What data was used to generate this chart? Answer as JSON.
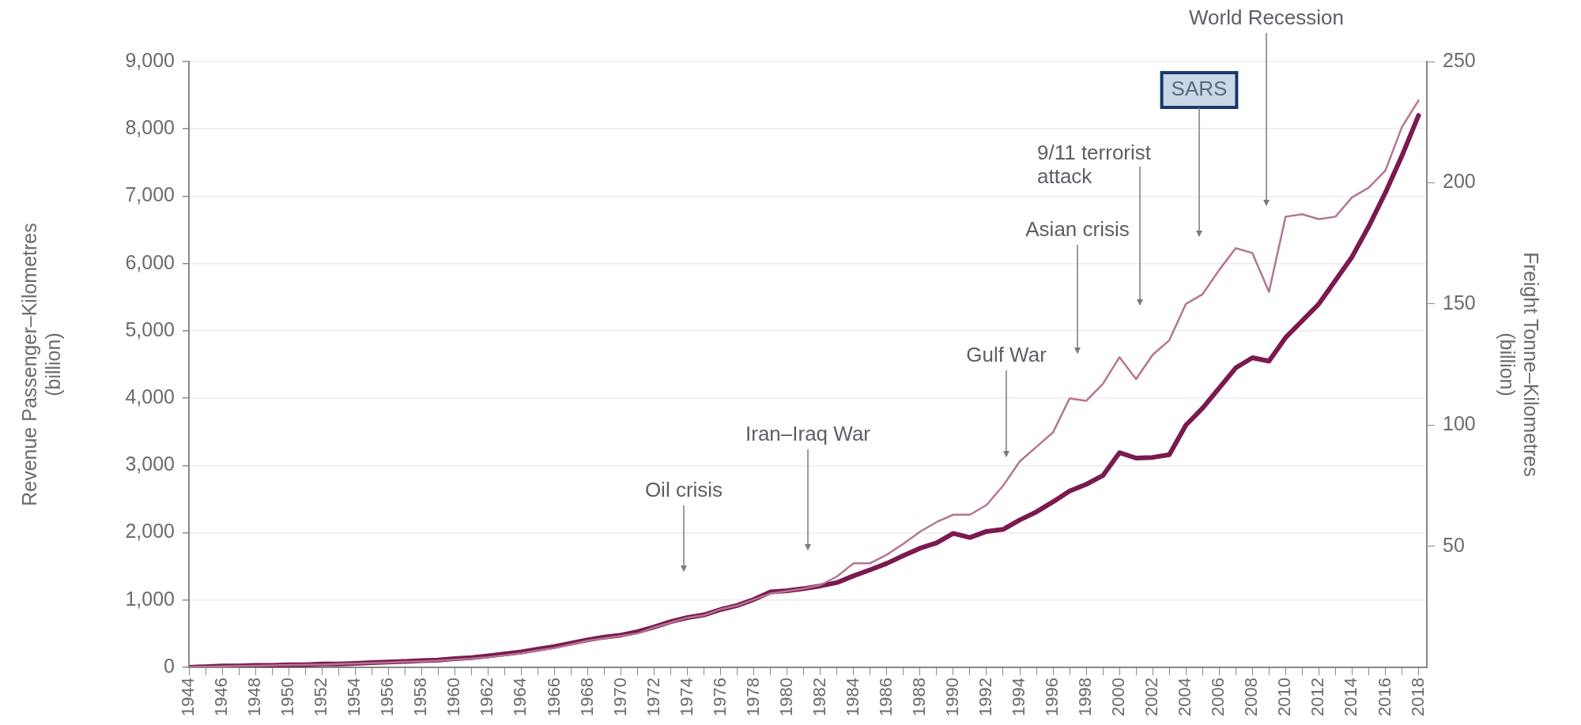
{
  "chart_data": {
    "type": "line",
    "ylabel": "Revenue Passenger–Kilometres (billion)",
    "y2label": "Freight Tonne–Kilometres (billion)",
    "x": [
      1944,
      1945,
      1946,
      1947,
      1948,
      1949,
      1950,
      1951,
      1952,
      1953,
      1954,
      1955,
      1956,
      1957,
      1958,
      1959,
      1960,
      1961,
      1962,
      1963,
      1964,
      1965,
      1966,
      1967,
      1968,
      1969,
      1970,
      1971,
      1972,
      1973,
      1974,
      1975,
      1976,
      1977,
      1978,
      1979,
      1980,
      1981,
      1982,
      1983,
      1984,
      1985,
      1986,
      1987,
      1988,
      1989,
      1990,
      1991,
      1992,
      1993,
      1994,
      1995,
      1996,
      1997,
      1998,
      1999,
      2000,
      2001,
      2002,
      2003,
      2004,
      2005,
      2006,
      2007,
      2008,
      2009,
      2010,
      2011,
      2012,
      2013,
      2014,
      2015,
      2016,
      2017,
      2018
    ],
    "series": [
      {
        "color": "#7a1a4f",
        "values": [
          0,
          10,
          20,
          20,
          30,
          30,
          40,
          40,
          50,
          50,
          60,
          70,
          80,
          90,
          100,
          110,
          130,
          145,
          170,
          200,
          230,
          270,
          310,
          360,
          410,
          450,
          480,
          530,
          600,
          680,
          740,
          780,
          860,
          920,
          1010,
          1120,
          1140,
          1170,
          1210,
          1260,
          1360,
          1450,
          1545,
          1660,
          1770,
          1850,
          1990,
          1930,
          2020,
          2050,
          2190,
          2310,
          2460,
          2620,
          2720,
          2850,
          3190,
          3110,
          3120,
          3160,
          3600,
          3850,
          4150,
          4450,
          4600,
          4550,
          4900,
          5150,
          5400,
          5750,
          6100,
          6550,
          7050,
          7600,
          8200
        ]
      },
      {
        "color": "#b57593",
        "axis": "y2",
        "values": [
          0.2,
          0.3,
          0.4,
          0.6,
          0.7,
          0.8,
          1,
          1.1,
          1.2,
          1.4,
          1.6,
          1.8,
          2,
          2.3,
          2.5,
          2.8,
          3.2,
          3.6,
          4.2,
          5,
          5.8,
          7,
          8,
          9.5,
          11,
          12,
          13,
          14,
          16.5,
          18.5,
          20.5,
          21.5,
          24,
          25.5,
          28,
          30.5,
          31.5,
          32.5,
          34,
          37.5,
          43,
          43,
          46.5,
          51,
          56,
          60,
          63,
          63,
          67,
          75,
          85,
          91,
          97,
          111,
          110,
          117,
          128,
          119,
          129,
          135,
          150,
          154,
          164,
          173,
          171,
          155,
          186,
          187,
          185,
          186,
          194,
          198,
          205,
          223,
          234
        ]
      }
    ],
    "xlim": [
      1944,
      2018.5
    ],
    "xticks": [
      1944,
      {
        "value": 1945,
        "label": null
      },
      1946,
      {
        "value": 1947,
        "label": null
      },
      1948,
      {
        "value": 1949,
        "label": null
      },
      1950,
      {
        "value": 1951,
        "label": null
      },
      1952,
      {
        "value": 1953,
        "label": null
      },
      1954,
      {
        "value": 1955,
        "label": null
      },
      1956,
      {
        "value": 1957,
        "label": null
      },
      1958,
      {
        "value": 1959,
        "label": null
      },
      1960,
      {
        "value": 1961,
        "label": null
      },
      1962,
      {
        "value": 1963,
        "label": null
      },
      1964,
      {
        "value": 1965,
        "label": null
      },
      1966,
      {
        "value": 1967,
        "label": null
      },
      1968,
      {
        "value": 1969,
        "label": null
      },
      1970,
      {
        "value": 1971,
        "label": null
      },
      1972,
      {
        "value": 1973,
        "label": null
      },
      1974,
      {
        "value": 1975,
        "label": null
      },
      1976,
      {
        "value": 1977,
        "label": null
      },
      1978,
      {
        "value": 1979,
        "label": null
      },
      1980,
      {
        "value": 1981,
        "label": null
      },
      1982,
      {
        "value": 1983,
        "label": null
      },
      1984,
      {
        "value": 1985,
        "label": null
      },
      1986,
      {
        "value": 1987,
        "label": null
      },
      1988,
      {
        "value": 1989,
        "label": null
      },
      1990,
      {
        "value": 1991,
        "label": null
      },
      1992,
      {
        "value": 1993,
        "label": null
      },
      1994,
      {
        "value": 1995,
        "label": null
      },
      1996,
      {
        "value": 1997,
        "label": null
      },
      1998,
      {
        "value": 1999,
        "label": null
      },
      2000,
      {
        "value": 2001,
        "label": null
      },
      2002,
      {
        "value": 2003,
        "label": null
      },
      2004,
      {
        "value": 2005,
        "label": null
      },
      2006,
      {
        "value": 2007,
        "label": null
      },
      2008,
      {
        "value": 2009,
        "label": null
      },
      2010,
      {
        "value": 2011,
        "label": null
      },
      2012,
      {
        "value": 2013,
        "label": null
      },
      2014,
      {
        "value": 2015,
        "label": null
      },
      2016,
      {
        "value": 2017,
        "label": null
      },
      2018
    ],
    "ylim": [
      0,
      9000
    ],
    "yticks": [
      0,
      {
        "value": 1000,
        "label": "1,000"
      },
      {
        "value": 2000,
        "label": "2,000"
      },
      {
        "value": 3000,
        "label": "3,000"
      },
      {
        "value": 4000,
        "label": "4,000"
      },
      {
        "value": 5000,
        "label": "5,000"
      },
      {
        "value": 6000,
        "label": "6,000"
      },
      {
        "value": 7000,
        "label": "7,000"
      },
      {
        "value": 8000,
        "label": "8,000"
      },
      {
        "value": 9000,
        "label": "9,000"
      }
    ],
    "y2lim": [
      0,
      250
    ],
    "y2ticks": [
      50,
      100,
      150,
      200,
      250
    ],
    "grid": "y",
    "legend": false,
    "marker": "none",
    "line_style": "solid",
    "annotations": [
      "Oil crisis",
      "Iran–Iraq War",
      "Gulf War",
      "Asian crisis",
      "9/11 terrorist attack",
      "SARS",
      "World Recession"
    ]
  }
}
